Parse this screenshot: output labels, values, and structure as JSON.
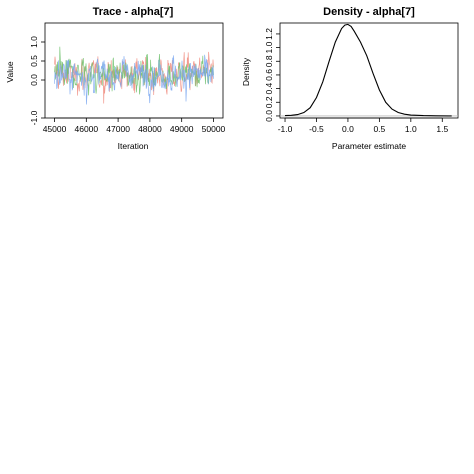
{
  "chart_data": [
    {
      "type": "line",
      "title": "Trace - alpha[7]",
      "xlabel": "Iteration",
      "ylabel": "Value",
      "xlim": [
        44700,
        50300
      ],
      "ylim": [
        -1.0,
        1.5
      ],
      "x_ticks": [
        "45000",
        "46000",
        "47000",
        "48000",
        "49000",
        "50000"
      ],
      "x_tick_values": [
        45000,
        46000,
        47000,
        48000,
        49000,
        50000
      ],
      "y_ticks": [
        "-1.0",
        "0.0",
        "0.5",
        "1.0"
      ],
      "y_tick_values": [
        -1.0,
        0.0,
        0.5,
        1.0
      ],
      "x_range": [
        45000,
        50000
      ],
      "series_colors": [
        "#f08a7c",
        "#6cc06a",
        "#7aa7f0"
      ],
      "series_center": 0.15,
      "series_spread": 0.35,
      "grid": false,
      "box": true
    },
    {
      "type": "line",
      "title": "Density - alpha[7]",
      "xlabel": "Parameter estimate",
      "ylabel": "Density",
      "xlim": [
        -1.08,
        1.75
      ],
      "ylim": [
        -0.03,
        1.36
      ],
      "x_ticks": [
        "-1.0",
        "-0.5",
        "0.0",
        "0.5",
        "1.0",
        "1.5"
      ],
      "x_tick_values": [
        -1.0,
        -0.5,
        0.0,
        0.5,
        1.0,
        1.5
      ],
      "y_ticks": [
        "0.0",
        "0.2",
        "0.4",
        "0.6",
        "0.8",
        "1.0",
        "1.2"
      ],
      "y_tick_values": [
        0.0,
        0.2,
        0.4,
        0.6,
        0.8,
        1.0,
        1.2
      ],
      "x": [
        -1.0,
        -0.9,
        -0.8,
        -0.7,
        -0.6,
        -0.5,
        -0.4,
        -0.3,
        -0.2,
        -0.1,
        -0.05,
        0.0,
        0.05,
        0.1,
        0.2,
        0.3,
        0.4,
        0.5,
        0.6,
        0.7,
        0.8,
        0.9,
        1.0,
        1.2,
        1.4,
        1.6,
        1.65
      ],
      "y": [
        0.005,
        0.01,
        0.02,
        0.05,
        0.12,
        0.27,
        0.5,
        0.8,
        1.08,
        1.28,
        1.33,
        1.34,
        1.31,
        1.24,
        1.08,
        0.88,
        0.62,
        0.38,
        0.2,
        0.1,
        0.05,
        0.025,
        0.012,
        0.005,
        0.002,
        0.001,
        0.001
      ],
      "baseline": 0,
      "grid": false,
      "box": true
    }
  ]
}
